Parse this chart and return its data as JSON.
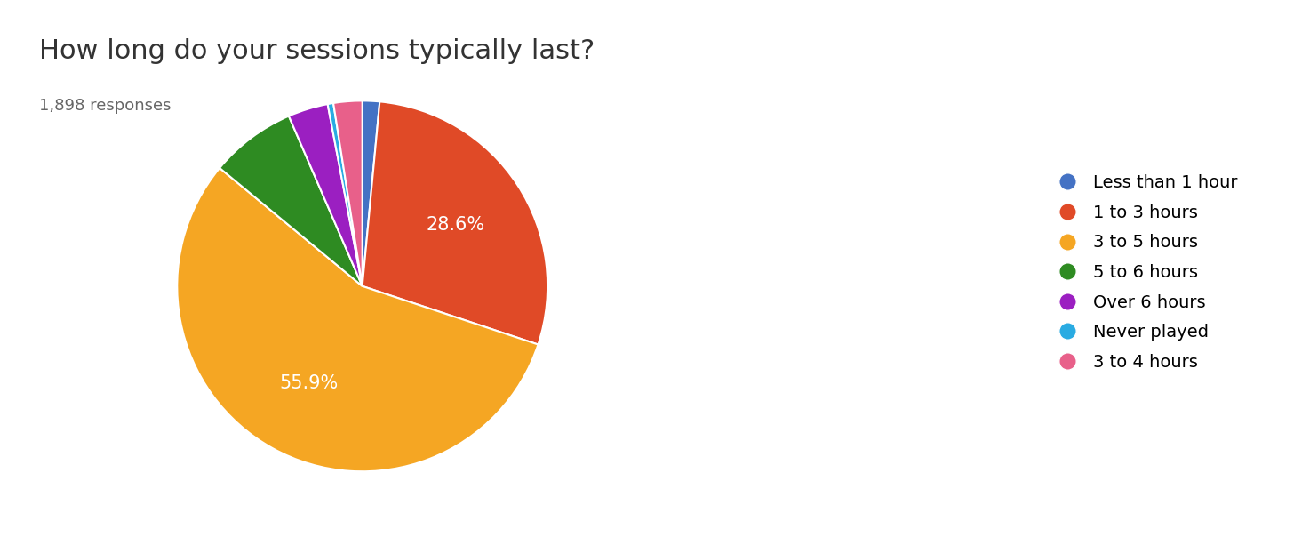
{
  "title": "How long do your sessions typically last?",
  "subtitle": "1,898 responses",
  "title_fontsize": 22,
  "subtitle_fontsize": 13,
  "labels": [
    "Less than 1 hour",
    "1 to 3 hours",
    "3 to 5 hours",
    "5 to 6 hours",
    "Over 6 hours",
    "Never played",
    "3 to 4 hours"
  ],
  "values": [
    1.5,
    28.6,
    55.9,
    7.5,
    3.5,
    0.5,
    2.5
  ],
  "colors": [
    "#4472C4",
    "#E04A27",
    "#F5A623",
    "#2E8B22",
    "#9B1FC1",
    "#29ABE2",
    "#E8608A"
  ],
  "pct_labels": [
    "",
    "28.6%",
    "55.9%",
    "",
    "",
    "",
    ""
  ],
  "startangle": 90,
  "background_color": "#ffffff",
  "legend_fontsize": 14,
  "pct_fontsize": 15
}
